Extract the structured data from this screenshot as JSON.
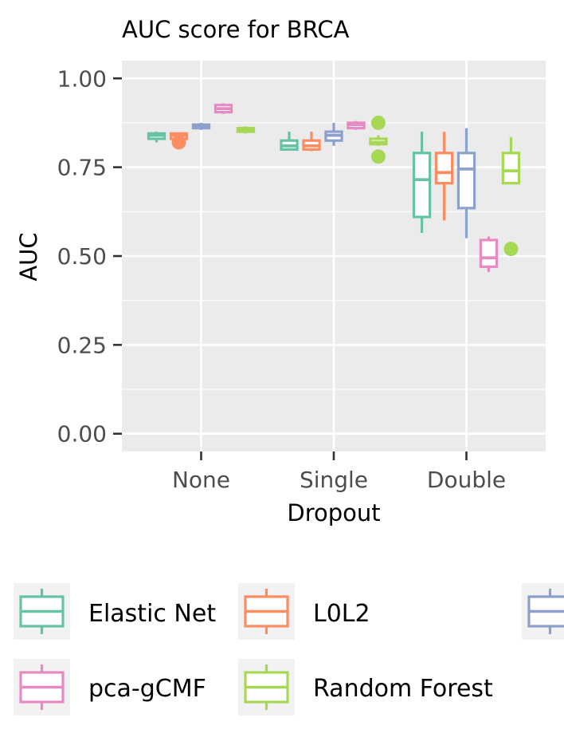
{
  "chart_data": {
    "type": "boxplot",
    "title": "AUC score for BRCA",
    "xlabel": "Dropout",
    "ylabel": "AUC",
    "categories": [
      "None",
      "Single",
      "Double"
    ],
    "ylim": [
      -0.05,
      1.05
    ],
    "yticks": [
      0.0,
      0.25,
      0.5,
      0.75,
      1.0
    ],
    "ytick_labels": [
      "0.00",
      "0.25",
      "0.50",
      "0.75",
      "1.00"
    ],
    "grid": true,
    "legend_position": "bottom",
    "series": [
      {
        "name": "Elastic Net",
        "color": "#66c2a5",
        "boxes": [
          {
            "category": "None",
            "min": 0.82,
            "q1": 0.83,
            "median": 0.84,
            "q3": 0.845,
            "max": 0.85,
            "outliers": []
          },
          {
            "category": "Single",
            "min": 0.8,
            "q1": 0.8,
            "median": 0.81,
            "q3": 0.825,
            "max": 0.85,
            "outliers": []
          },
          {
            "category": "Double",
            "min": 0.565,
            "q1": 0.61,
            "median": 0.715,
            "q3": 0.79,
            "max": 0.85,
            "outliers": []
          }
        ]
      },
      {
        "name": "L0L2",
        "color": "#fc8d62",
        "boxes": [
          {
            "category": "None",
            "min": 0.83,
            "q1": 0.83,
            "median": 0.84,
            "q3": 0.845,
            "max": 0.845,
            "outliers": [
              0.82
            ]
          },
          {
            "category": "Single",
            "min": 0.795,
            "q1": 0.8,
            "median": 0.81,
            "q3": 0.825,
            "max": 0.85,
            "outliers": []
          },
          {
            "category": "Double",
            "min": 0.6,
            "q1": 0.705,
            "median": 0.735,
            "q3": 0.79,
            "max": 0.85,
            "outliers": []
          }
        ]
      },
      {
        "name": "",
        "color": "#8da0cb",
        "boxes": [
          {
            "category": "None",
            "min": 0.855,
            "q1": 0.86,
            "median": 0.865,
            "q3": 0.87,
            "max": 0.875,
            "outliers": []
          },
          {
            "category": "Single",
            "min": 0.81,
            "q1": 0.825,
            "median": 0.84,
            "q3": 0.85,
            "max": 0.875,
            "outliers": []
          },
          {
            "category": "Double",
            "min": 0.55,
            "q1": 0.635,
            "median": 0.745,
            "q3": 0.79,
            "max": 0.86,
            "outliers": []
          }
        ]
      },
      {
        "name": "pca-gCMF",
        "color": "#e78ac3",
        "boxes": [
          {
            "category": "None",
            "min": 0.9,
            "q1": 0.905,
            "median": 0.915,
            "q3": 0.925,
            "max": 0.93,
            "outliers": []
          },
          {
            "category": "Single",
            "min": 0.855,
            "q1": 0.86,
            "median": 0.87,
            "q3": 0.875,
            "max": 0.88,
            "outliers": []
          },
          {
            "category": "Double",
            "min": 0.455,
            "q1": 0.47,
            "median": 0.495,
            "q3": 0.545,
            "max": 0.555,
            "outliers": []
          }
        ]
      },
      {
        "name": "Random Forest",
        "color": "#a6d854",
        "boxes": [
          {
            "category": "None",
            "min": 0.845,
            "q1": 0.85,
            "median": 0.855,
            "q3": 0.86,
            "max": 0.865,
            "outliers": []
          },
          {
            "category": "Single",
            "min": 0.81,
            "q1": 0.815,
            "median": 0.82,
            "q3": 0.83,
            "max": 0.84,
            "outliers": [
              0.875,
              0.78
            ]
          },
          {
            "category": "Double",
            "min": 0.705,
            "q1": 0.705,
            "median": 0.74,
            "q3": 0.79,
            "max": 0.835,
            "outliers": [
              0.52
            ]
          }
        ]
      }
    ]
  }
}
